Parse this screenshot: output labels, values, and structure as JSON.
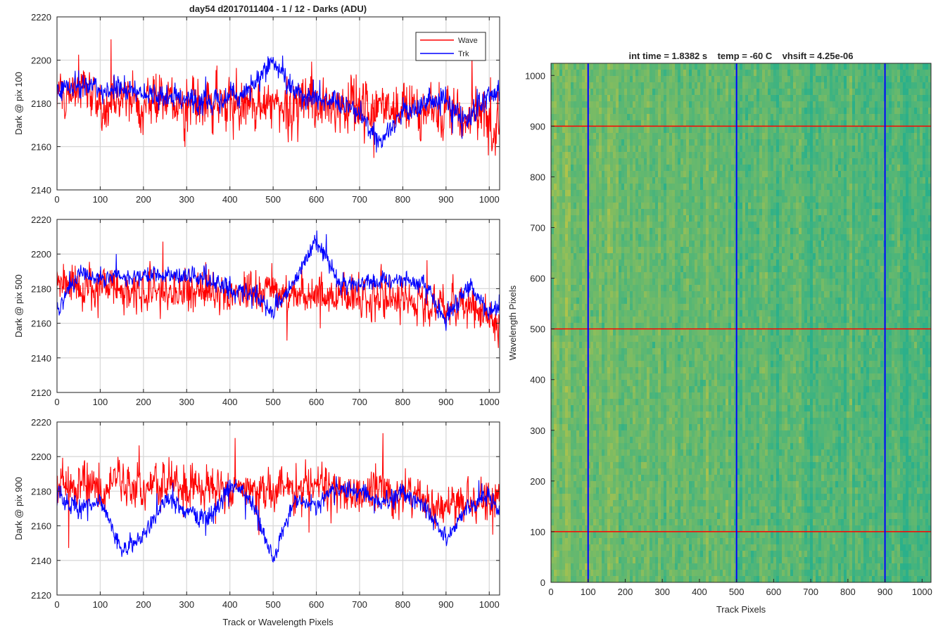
{
  "figure_title": "day54 d2017011404 - 1 / 12 - Darks (ADU)",
  "colors": {
    "wave": "#ff0000",
    "trk": "#0000ff",
    "grid": "#d9d9d9",
    "axes": "#262626"
  },
  "legend": {
    "placement": "top-right",
    "entries": [
      "Wave",
      "Trk"
    ]
  },
  "chart_data": [
    {
      "type": "line",
      "ylabel": "Dark @ pix 100",
      "xlim": [
        0,
        1024
      ],
      "ylim": [
        2140,
        2220
      ],
      "xticks": [
        "0",
        "100",
        "200",
        "300",
        "400",
        "500",
        "600",
        "700",
        "800",
        "900",
        "1000"
      ],
      "yticks": [
        "2140",
        "2160",
        "2180",
        "2200",
        "2220"
      ],
      "grid": true,
      "series": [
        {
          "name": "Wave",
          "color": "#ff0000",
          "x": [
            0,
            50,
            100,
            150,
            200,
            250,
            300,
            350,
            400,
            450,
            500,
            550,
            600,
            650,
            700,
            750,
            800,
            850,
            900,
            950,
            1000,
            1024
          ],
          "center": [
            2183,
            2185,
            2182,
            2183,
            2180,
            2183,
            2180,
            2181,
            2180,
            2179,
            2180,
            2179,
            2180,
            2179,
            2178,
            2180,
            2177,
            2176,
            2175,
            2176,
            2172,
            2170
          ],
          "spread": 9
        },
        {
          "name": "Trk",
          "color": "#0000ff",
          "x": [
            0,
            50,
            100,
            150,
            200,
            250,
            300,
            350,
            400,
            450,
            500,
            550,
            600,
            650,
            700,
            750,
            800,
            850,
            900,
            950,
            1000,
            1024
          ],
          "center": [
            2185,
            2189,
            2186,
            2186,
            2184,
            2185,
            2181,
            2182,
            2184,
            2186,
            2198,
            2186,
            2183,
            2182,
            2176,
            2162,
            2176,
            2180,
            2182,
            2172,
            2184,
            2186
          ],
          "spread": 4
        }
      ]
    },
    {
      "type": "line",
      "ylabel": "Dark @ pix 500",
      "xlim": [
        0,
        1024
      ],
      "ylim": [
        2120,
        2220
      ],
      "xticks": [
        "0",
        "100",
        "200",
        "300",
        "400",
        "500",
        "600",
        "700",
        "800",
        "900",
        "1000"
      ],
      "yticks": [
        "2120",
        "2140",
        "2160",
        "2180",
        "2200",
        "2220"
      ],
      "grid": true,
      "series": [
        {
          "name": "Wave",
          "color": "#ff0000",
          "x": [
            0,
            50,
            100,
            150,
            200,
            250,
            300,
            350,
            400,
            450,
            500,
            550,
            600,
            650,
            700,
            750,
            800,
            850,
            900,
            950,
            1000,
            1024
          ],
          "center": [
            2182,
            2183,
            2180,
            2180,
            2177,
            2181,
            2179,
            2178,
            2177,
            2177,
            2178,
            2178,
            2176,
            2176,
            2175,
            2176,
            2175,
            2172,
            2170,
            2172,
            2163,
            2160
          ],
          "spread": 9
        },
        {
          "name": "Trk",
          "color": "#0000ff",
          "x": [
            0,
            50,
            100,
            150,
            200,
            250,
            300,
            350,
            400,
            450,
            500,
            550,
            600,
            650,
            700,
            750,
            800,
            850,
            900,
            950,
            1000,
            1024
          ],
          "center": [
            2168,
            2188,
            2187,
            2186,
            2187,
            2188,
            2187,
            2185,
            2180,
            2178,
            2165,
            2185,
            2210,
            2185,
            2182,
            2185,
            2185,
            2182,
            2162,
            2182,
            2166,
            2170
          ],
          "spread": 4
        }
      ]
    },
    {
      "type": "line",
      "ylabel": "Dark @ pix 900",
      "xlabel": "Track or Wavelength Pixels",
      "xlim": [
        0,
        1024
      ],
      "ylim": [
        2120,
        2220
      ],
      "xticks": [
        "0",
        "100",
        "200",
        "300",
        "400",
        "500",
        "600",
        "700",
        "800",
        "900",
        "1000"
      ],
      "yticks": [
        "2120",
        "2140",
        "2160",
        "2180",
        "2200",
        "2220"
      ],
      "grid": true,
      "series": [
        {
          "name": "Wave",
          "color": "#ff0000",
          "x": [
            0,
            50,
            100,
            150,
            200,
            250,
            300,
            350,
            400,
            450,
            500,
            550,
            600,
            650,
            700,
            750,
            800,
            850,
            900,
            950,
            1000,
            1024
          ],
          "center": [
            2185,
            2184,
            2183,
            2182,
            2183,
            2185,
            2183,
            2182,
            2182,
            2181,
            2180,
            2182,
            2181,
            2180,
            2179,
            2180,
            2177,
            2175,
            2170,
            2174,
            2174,
            2176
          ],
          "spread": 9
        },
        {
          "name": "Trk",
          "color": "#0000ff",
          "x": [
            0,
            50,
            100,
            150,
            200,
            250,
            300,
            350,
            400,
            450,
            500,
            550,
            600,
            650,
            700,
            750,
            800,
            850,
            900,
            950,
            1000,
            1024
          ],
          "center": [
            2178,
            2170,
            2175,
            2145,
            2155,
            2175,
            2168,
            2162,
            2183,
            2175,
            2140,
            2175,
            2172,
            2182,
            2180,
            2172,
            2178,
            2172,
            2152,
            2172,
            2178,
            2170
          ],
          "spread": 4
        }
      ]
    },
    {
      "type": "heatmap",
      "title": "int time = 1.8382 s    temp = -60 C    vhsift = 4.25e-06",
      "xlabel": "Track Pixels",
      "ylabel": "Wavelength Pixels",
      "xlim": [
        0,
        1024
      ],
      "ylim": [
        0,
        1024
      ],
      "xticks": [
        "0",
        "100",
        "200",
        "300",
        "400",
        "500",
        "600",
        "700",
        "800",
        "900",
        "1000"
      ],
      "yticks": [
        "0",
        "100",
        "200",
        "300",
        "400",
        "500",
        "600",
        "700",
        "800",
        "900",
        "1000"
      ],
      "colormap_endpoints": [
        "#2bb08a",
        "#b0c34a"
      ],
      "vertical_markers": [
        100,
        500,
        900
      ],
      "horizontal_markers": [
        100,
        500,
        900
      ],
      "vertical_marker_color": "#0000ff",
      "horizontal_marker_color": "#ff0000"
    }
  ]
}
